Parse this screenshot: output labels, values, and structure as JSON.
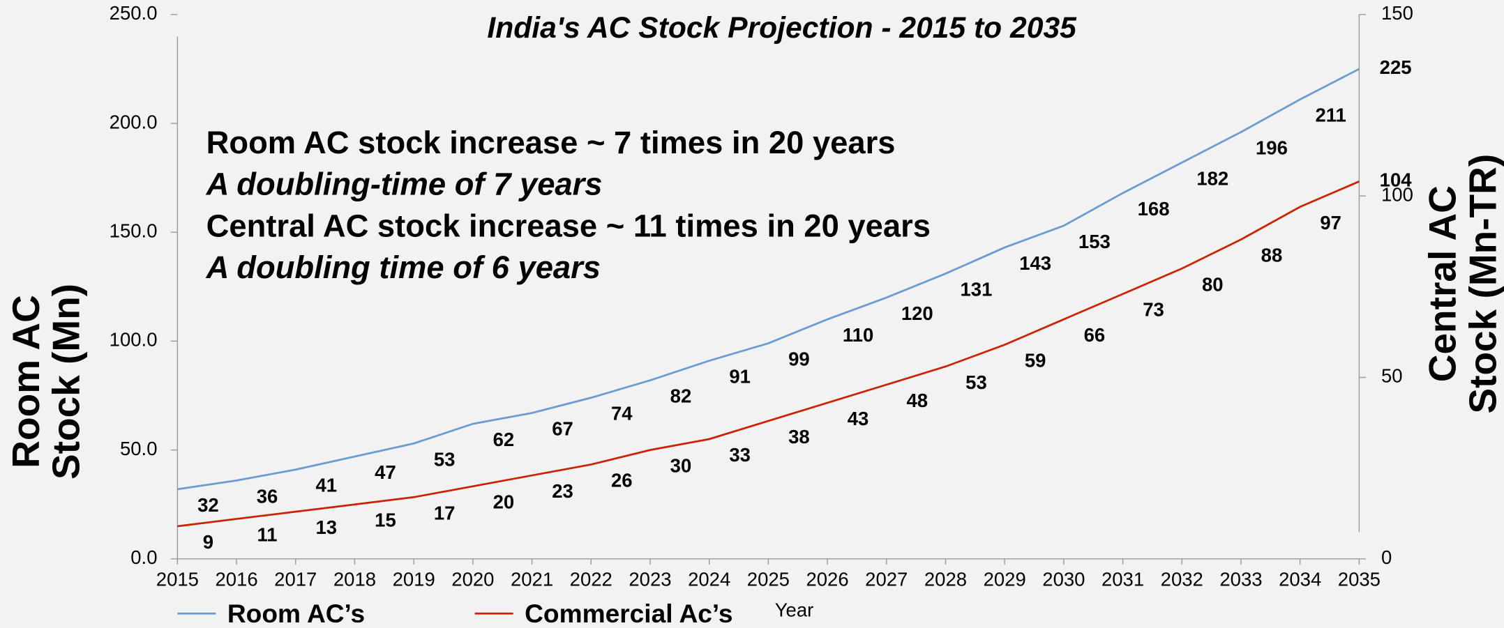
{
  "chart_data": {
    "type": "line",
    "title": "India's AC Stock Projection - 2015 to 2035",
    "xlabel": "Year",
    "ylabel": [
      "Room AC",
      "Stock (Mn)"
    ],
    "y2label": [
      "Central AC",
      "Stock (Mn-TR)"
    ],
    "annotations": [
      {
        "text": "Room AC stock increase ~ 7 times in 20 years",
        "color": "#8c8c8c",
        "italic": false
      },
      {
        "text": "A doubling-time of 7 years",
        "color": "#c00000",
        "italic": true
      },
      {
        "text": "Central AC stock increase ~ 11 times in 20 years",
        "color": "#8c8c8c",
        "italic": false
      },
      {
        "text": "A doubling time of 6 years",
        "color": "#cc2200",
        "italic": true
      }
    ],
    "categories": [
      "2015",
      "2016",
      "2017",
      "2018",
      "2019",
      "2020",
      "2021",
      "2022",
      "2023",
      "2024",
      "2025",
      "2026",
      "2027",
      "2028",
      "2029",
      "2030",
      "2031",
      "2032",
      "2033",
      "2034",
      "2035"
    ],
    "series": [
      {
        "name": "Room AC’s",
        "color": "#6a9bd1",
        "axis": "y",
        "values": [
          32,
          36,
          41,
          47,
          53,
          62,
          67,
          74,
          82,
          91,
          99,
          110,
          120,
          131,
          143,
          153,
          168,
          182,
          196,
          211,
          225
        ]
      },
      {
        "name": "Commercial Ac’s",
        "color": "#cc2200",
        "axis": "y2",
        "values": [
          9,
          11,
          13,
          15,
          17,
          20,
          23,
          26,
          30,
          33,
          38,
          43,
          48,
          53,
          59,
          66,
          73,
          80,
          88,
          97,
          104
        ]
      }
    ],
    "ylim": [
      0,
      250
    ],
    "yticks": [
      {
        "value": 0,
        "label": "0.0"
      },
      {
        "value": 50,
        "label": "50.0"
      },
      {
        "value": 100,
        "label": "100.0"
      },
      {
        "value": 150,
        "label": "150.0"
      },
      {
        "value": 200,
        "label": "200.0"
      },
      {
        "value": 250,
        "label": "250.0"
      }
    ],
    "y2lim": [
      0,
      150
    ],
    "y2ticks": [
      0,
      50,
      100,
      150
    ],
    "legend": "bottom-left"
  }
}
